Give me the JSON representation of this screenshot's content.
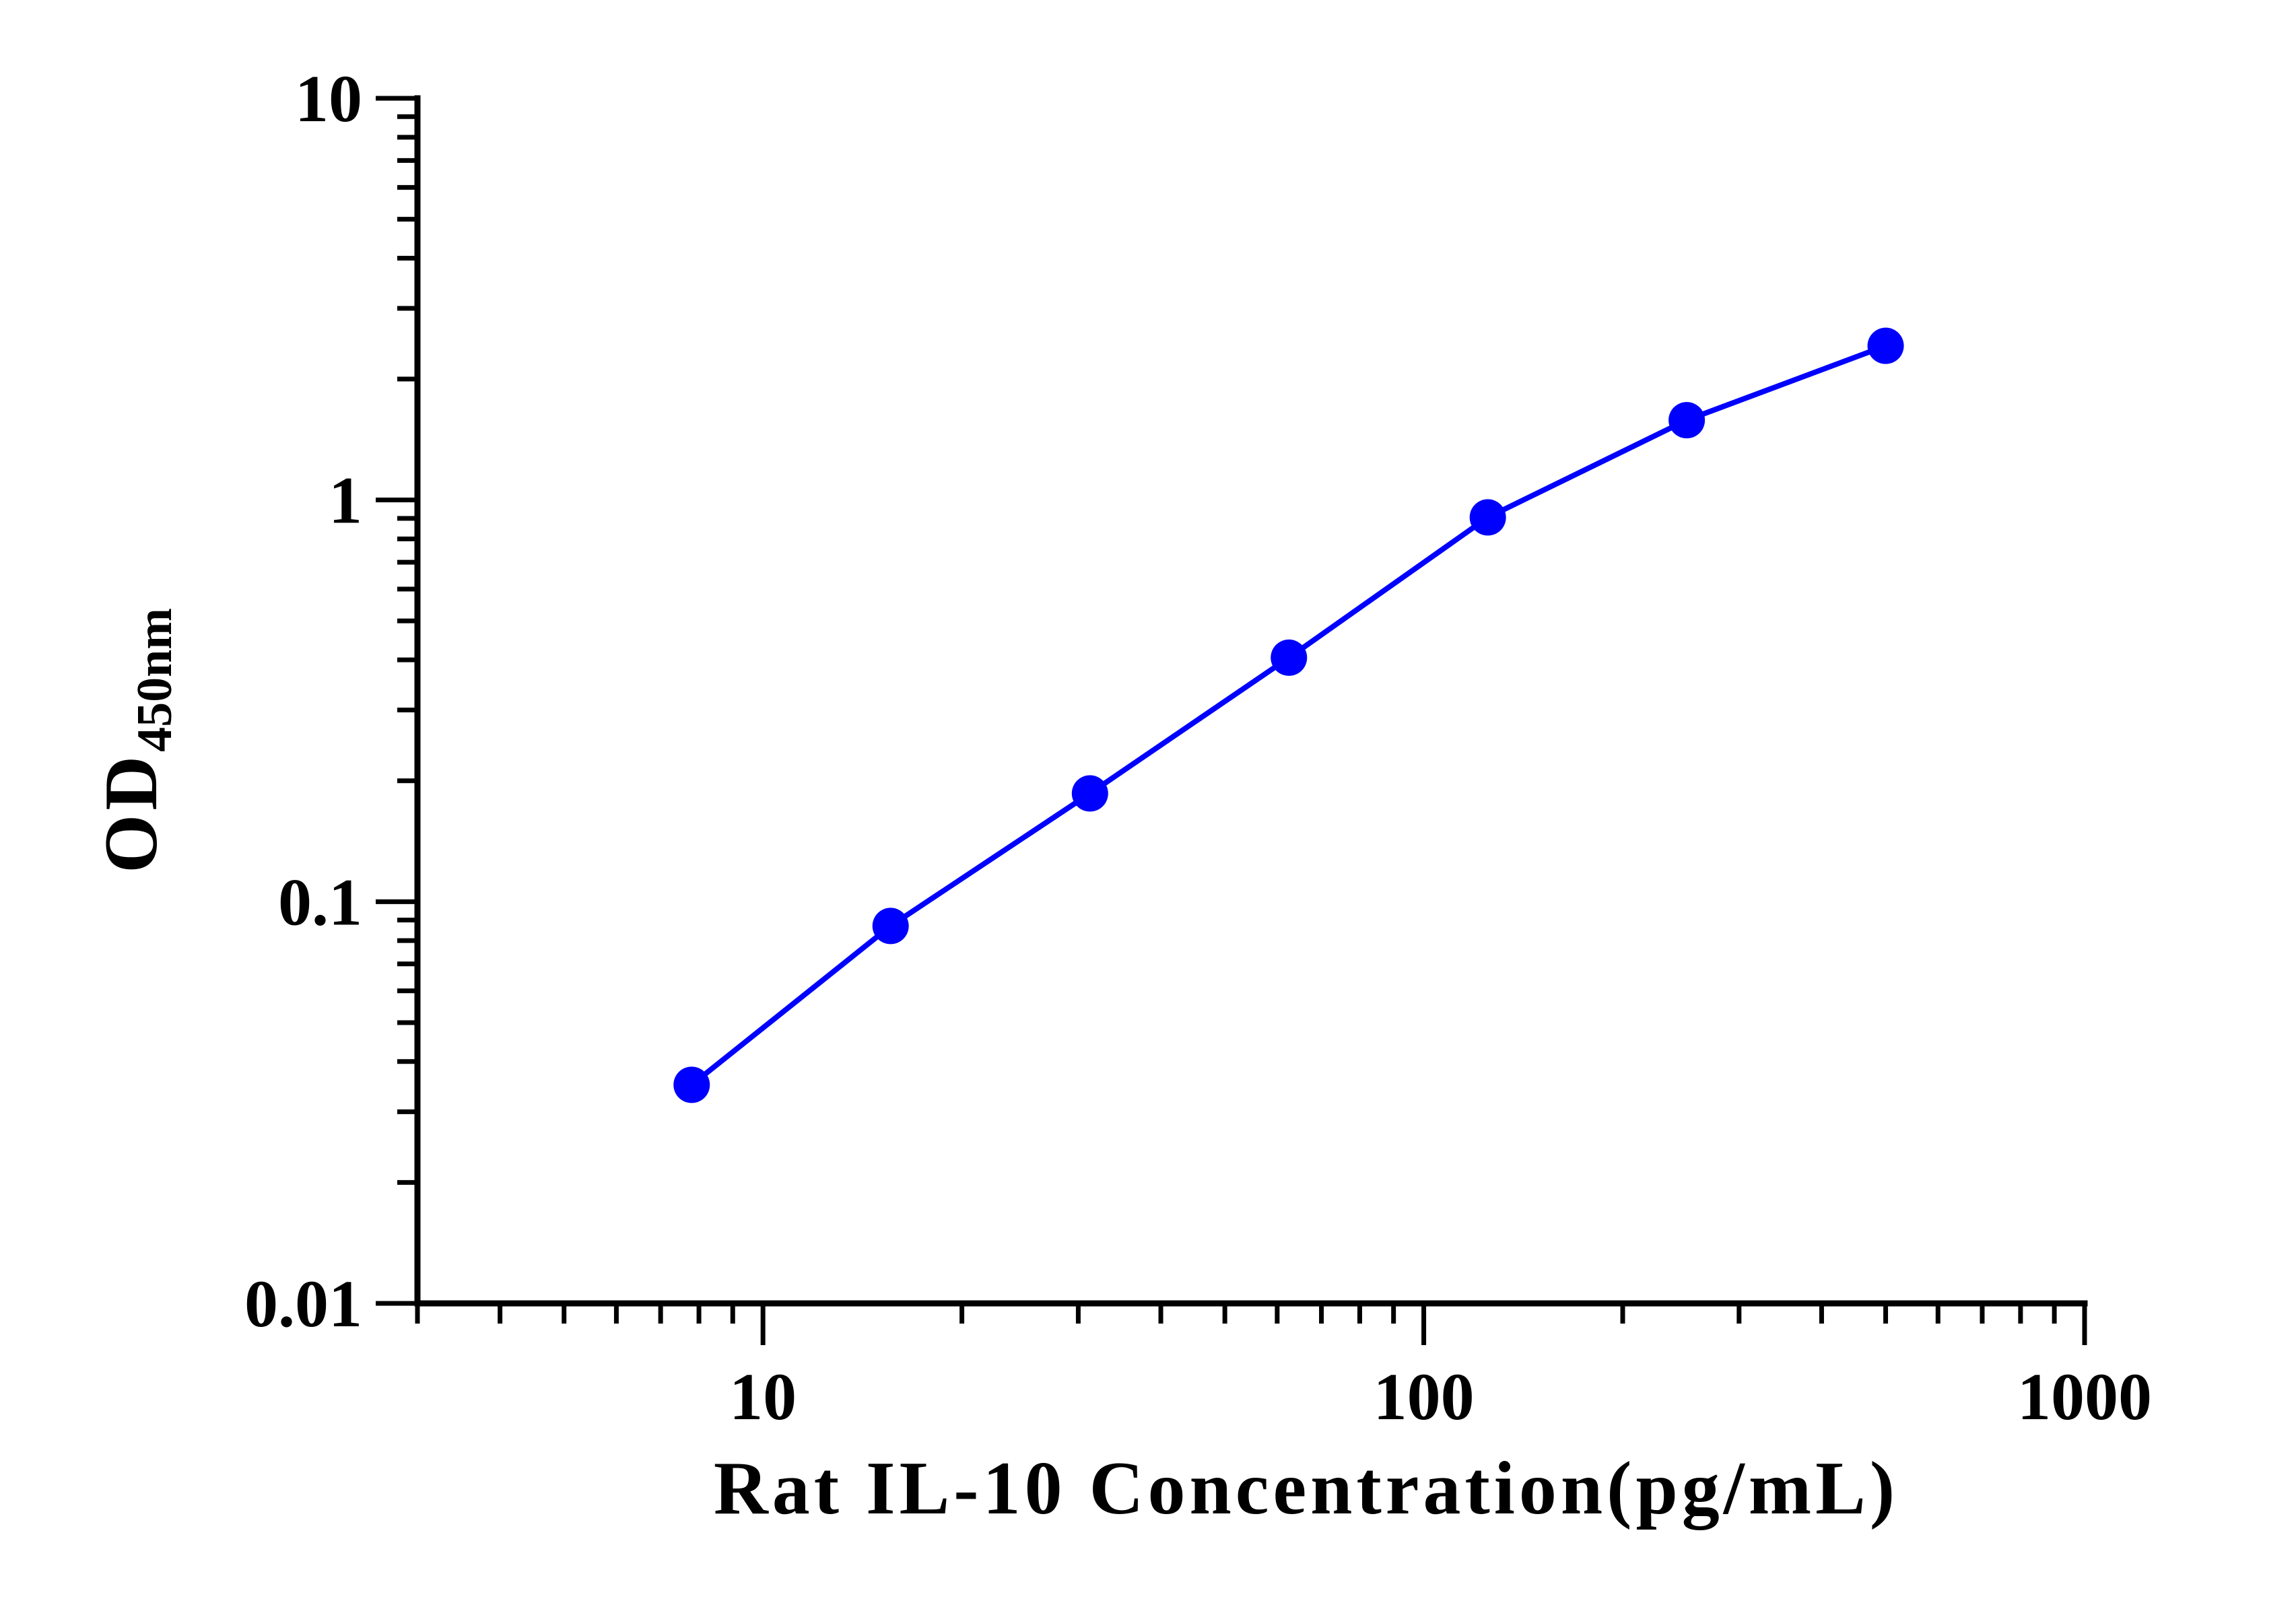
{
  "chart_data": {
    "type": "line",
    "title": "",
    "xlabel": "Rat IL-10 Concentration(pg/mL)",
    "ylabel": "OD",
    "ylabel_subscript": "450nm",
    "x_scale": "log",
    "y_scale": "log",
    "xlim": [
      3,
      1000
    ],
    "ylim": [
      0.01,
      10
    ],
    "x_tick_labels": [
      "10",
      "100",
      "1000"
    ],
    "y_tick_labels": [
      "0.01",
      "0.1",
      "1",
      "10"
    ],
    "grid": false,
    "legend": "none",
    "series": [
      {
        "x": [
          7.8,
          15.6,
          31.25,
          62.5,
          125,
          250,
          500
        ],
        "y": [
          0.035,
          0.087,
          0.186,
          0.405,
          0.905,
          1.58,
          2.42
        ],
        "color": "#0000ff",
        "marker": "circle"
      }
    ]
  }
}
